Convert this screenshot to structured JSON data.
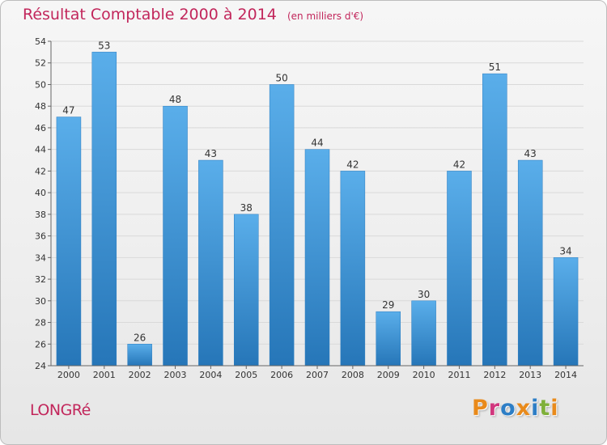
{
  "header": {
    "title": "Résultat Comptable 2000 à 2014",
    "unit": "(en milliers d'€)"
  },
  "footer": {
    "commune": "LONGRé",
    "brand": "Proxiti",
    "brand_colors": [
      "#e98a1a",
      "#d1367d",
      "#2d7ec6",
      "#e98a1a",
      "#2d7ec6",
      "#7fb03a",
      "#e98a1a"
    ]
  },
  "chart_data": {
    "type": "bar",
    "title": "Résultat Comptable 2000 à 2014",
    "subtitle": "(en milliers d'€)",
    "xlabel": "",
    "ylabel": "",
    "categories": [
      "2000",
      "2001",
      "2002",
      "2003",
      "2004",
      "2005",
      "2006",
      "2007",
      "2008",
      "2009",
      "2010",
      "2011",
      "2012",
      "2013",
      "2014"
    ],
    "values": [
      47,
      53,
      26,
      48,
      43,
      38,
      50,
      44,
      42,
      29,
      30,
      42,
      51,
      43,
      34
    ],
    "ylim": [
      24,
      54
    ],
    "yticks": [
      24,
      26,
      28,
      30,
      32,
      34,
      36,
      38,
      40,
      42,
      44,
      46,
      48,
      50,
      52,
      54
    ],
    "grid": true,
    "bar_color": "#3a96dc",
    "legend": "none"
  }
}
